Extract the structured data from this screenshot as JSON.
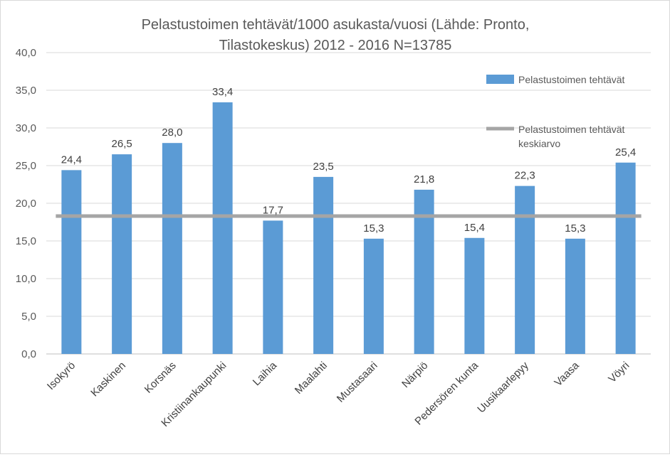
{
  "chart_data": {
    "type": "bar",
    "title_line1": "Pelastustoimen tehtävät/1000 asukasta/vuosi (Lähde: Pronto,",
    "title_line2": "Tilastokeskus) 2012 - 2016 N=13785",
    "categories": [
      "Isokyrö",
      "Kaskinen",
      "Korsnäs",
      "Kristiinankaupunki",
      "Laihia",
      "Maalahti",
      "Mustasaari",
      "Närpiö",
      "Pedersören kunta",
      "Uusikaarlepyy",
      "Vaasa",
      "Vöyri"
    ],
    "series": [
      {
        "name": "Pelastustoimen tehtävät",
        "type": "bar",
        "values": [
          24.4,
          26.5,
          28.0,
          33.4,
          17.7,
          23.5,
          15.3,
          21.8,
          15.4,
          22.3,
          15.3,
          25.4
        ],
        "labels": [
          "24,4",
          "26,5",
          "28,0",
          "33,4",
          "17,7",
          "23,5",
          "15,3",
          "21,8",
          "15,4",
          "22,3",
          "15,3",
          "25,4"
        ],
        "color": "#5b9bd5"
      },
      {
        "name_line1": "Pelastustoimen tehtävät",
        "name_line2": "keskiarvo",
        "type": "line",
        "value": 18.3,
        "color": "#a5a5a5"
      }
    ],
    "ylim": [
      0,
      40
    ],
    "yticks": [
      0,
      5,
      10,
      15,
      20,
      25,
      30,
      35,
      40
    ],
    "ytick_labels": [
      "0,0",
      "5,0",
      "10,0",
      "15,0",
      "20,0",
      "25,0",
      "30,0",
      "35,0",
      "40,0"
    ],
    "grid": true,
    "legend_position": "right"
  }
}
